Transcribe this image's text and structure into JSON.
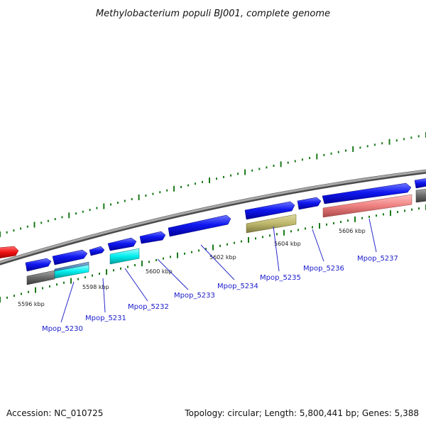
{
  "title": "Methylobacterium populi BJ001, complete genome",
  "footer": {
    "accession": "Accession: NC_010725",
    "summary": "Topology: circular; Length: 5,800,441 bp; Genes: 5,388"
  },
  "ruler": {
    "ticks": [
      "5596 kbp",
      "5598 kbp",
      "5600 kbp",
      "5602 kbp",
      "5604 kbp",
      "5606 kbp"
    ]
  },
  "genes": [
    {
      "name": "Mpop_5230",
      "color": "#0a10ee"
    },
    {
      "name": "Mpop_5231",
      "color": "#0a10ee"
    },
    {
      "name": "Mpop_5232",
      "color": "#00eeee"
    },
    {
      "name": "Mpop_5233",
      "color": "#0a10ee"
    },
    {
      "name": "Mpop_5234",
      "color": "#0a10ee"
    },
    {
      "name": "Mpop_5235",
      "color": "#bdb76b"
    },
    {
      "name": "Mpop_5236",
      "color": "#0a10ee"
    },
    {
      "name": "Mpop_5237",
      "color": "#ee8080"
    }
  ],
  "colors": {
    "backbone": "#8a8a8a",
    "label": "#1a1acc",
    "tick_mark": "#1a7a1a",
    "red_feature": "#ee1010",
    "gray_feature": "#6a6a6a"
  }
}
